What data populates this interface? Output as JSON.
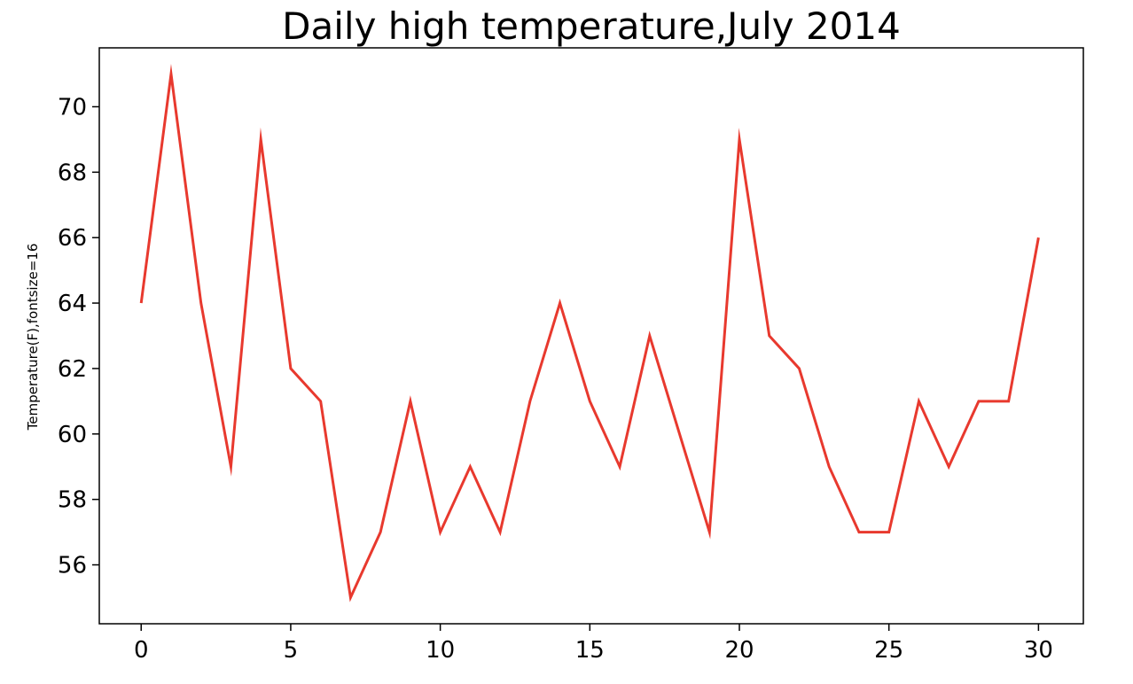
{
  "chart_data": {
    "type": "line",
    "title": "Daily high temperature,July 2014",
    "xlabel": "",
    "ylabel": "Temperature(F),fontsize=16",
    "x": [
      0,
      1,
      2,
      3,
      4,
      5,
      6,
      7,
      8,
      9,
      10,
      11,
      12,
      13,
      14,
      15,
      16,
      17,
      18,
      19,
      20,
      21,
      22,
      23,
      24,
      25,
      26,
      27,
      28,
      29,
      30
    ],
    "series": [
      {
        "values": [
          64,
          71,
          64,
          59,
          69,
          62,
          61,
          55,
          57,
          61,
          57,
          59,
          57,
          61,
          64,
          61,
          59,
          63,
          60,
          57,
          69,
          63,
          62,
          59,
          57,
          57,
          61,
          59,
          61,
          61,
          66
        ],
        "color": "#e8392e"
      }
    ],
    "xlim": [
      -1.4,
      31.5
    ],
    "ylim": [
      54.2,
      71.8
    ],
    "xticks": [
      0,
      5,
      10,
      15,
      20,
      25,
      30
    ],
    "yticks": [
      56,
      58,
      60,
      62,
      64,
      66,
      68,
      70
    ],
    "grid": false,
    "legend": "none"
  }
}
